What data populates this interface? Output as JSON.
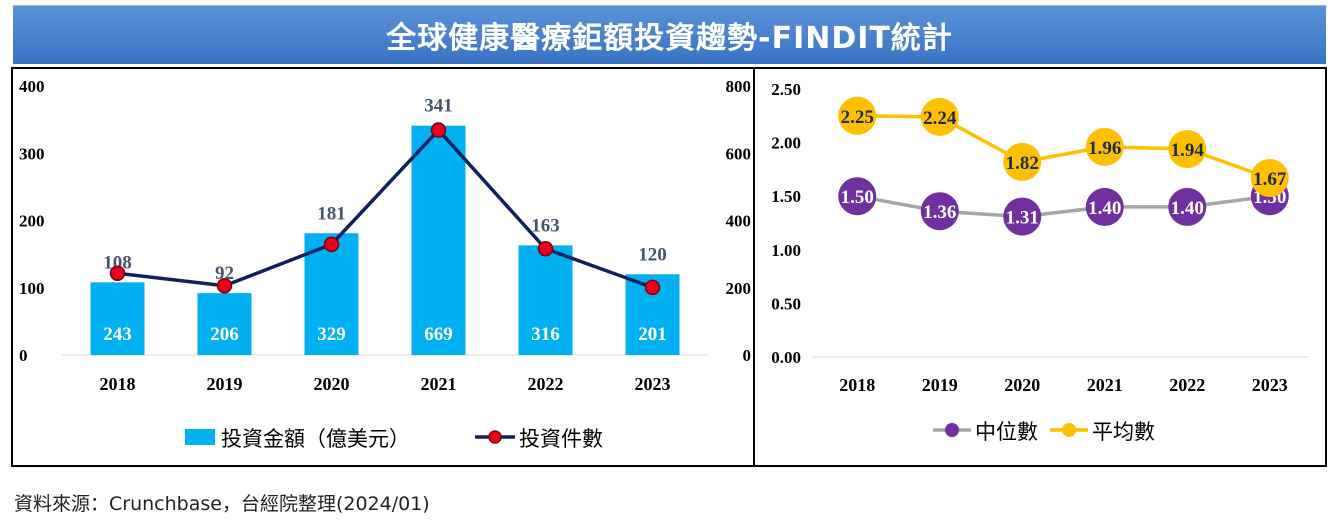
{
  "title": "全球健康醫療鉅額投資趨勢-FINDIT統計",
  "source": "資料來源：Crunchbase，台經院整理(2024/01)",
  "colors": {
    "title_bg": "#4a82cf",
    "bar": "#00b0f0",
    "line_count": "#0d2060",
    "marker_count": "#e8001c",
    "median": "#a6a6a6",
    "median_marker": "#7030a0",
    "mean": "#ffc000"
  },
  "chart_data": [
    {
      "type": "bar",
      "categories": [
        "2018",
        "2019",
        "2020",
        "2021",
        "2022",
        "2023"
      ],
      "series": [
        {
          "name": "投資金額（億美元）",
          "type": "bar",
          "axis": "left",
          "values": [
            108,
            92,
            181,
            341,
            163,
            120
          ]
        },
        {
          "name": "投資件數",
          "type": "line",
          "axis": "right",
          "values": [
            243,
            206,
            329,
            669,
            316,
            201
          ]
        }
      ],
      "y_left": {
        "min": 0,
        "max": 400,
        "ticks": [
          "0",
          "100",
          "200",
          "300",
          "400"
        ]
      },
      "y_right": {
        "min": 0,
        "max": 800,
        "ticks": [
          "0",
          "200",
          "400",
          "600",
          "800"
        ]
      },
      "grid": false,
      "legend_position": "bottom"
    },
    {
      "type": "line",
      "categories": [
        "2018",
        "2019",
        "2020",
        "2021",
        "2022",
        "2023"
      ],
      "series": [
        {
          "name": "中位數",
          "values": [
            1.5,
            1.36,
            1.31,
            1.4,
            1.4,
            1.5
          ],
          "labels": [
            "1.50",
            "1.36",
            "1.31",
            "1.40",
            "1.40",
            "1.50"
          ]
        },
        {
          "name": "平均數",
          "values": [
            2.25,
            2.24,
            1.82,
            1.96,
            1.94,
            1.67
          ],
          "labels": [
            "2.25",
            "2.24",
            "1.82",
            "1.96",
            "1.94",
            "1.67"
          ]
        }
      ],
      "y": {
        "min": 0,
        "max": 2.5,
        "ticks": [
          "0.00",
          "0.50",
          "1.00",
          "1.50",
          "2.00",
          "2.50"
        ]
      },
      "grid": false,
      "legend_position": "bottom"
    }
  ]
}
